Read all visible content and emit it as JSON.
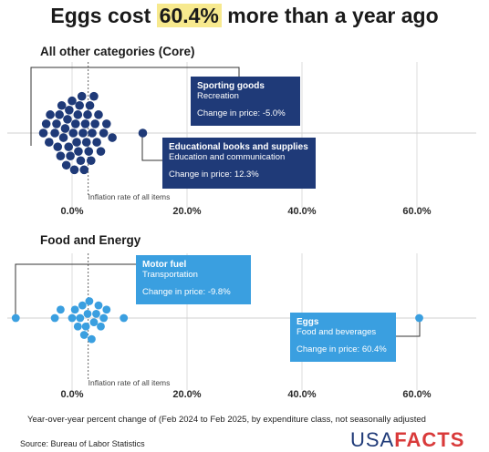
{
  "title": {
    "prefix": "Eggs cost ",
    "highlight": "60.4%",
    "suffix": " more than a year ago"
  },
  "chart_data": [
    {
      "type": "scatter",
      "title": "All other categories (Core)",
      "x_ticks": [
        "0.0%",
        "20.0%",
        "40.0%",
        "60.0%"
      ],
      "xlim": [
        -10,
        70
      ],
      "reference_line": {
        "value": 2.8,
        "label": "Inflation rate of all items"
      },
      "points": [
        -5,
        -4.5,
        -4,
        -3.8,
        -3,
        -2.7,
        -2.5,
        -2.2,
        -2,
        -1.8,
        -1.5,
        -1.2,
        -1,
        -0.8,
        -0.6,
        -0.5,
        -0.3,
        0,
        0.2,
        0.4,
        0.6,
        0.8,
        1,
        1.1,
        1.3,
        1.5,
        1.7,
        1.9,
        2.1,
        2.3,
        2.5,
        2.7,
        2.9,
        3.1,
        3.3,
        3.5,
        3.8,
        4,
        4.3,
        4.6,
        5,
        5.5,
        6,
        7,
        12.3
      ],
      "callouts": [
        {
          "name": "Sporting goods",
          "category": "Recreation",
          "change": "Change in price: -5.0%",
          "value": -5.0
        },
        {
          "name": "Educational books and supplies",
          "category": "Education and communication",
          "change": "Change in price: 12.3%",
          "value": 12.3
        }
      ]
    },
    {
      "type": "scatter",
      "title": "Food and Energy",
      "x_ticks": [
        "0.0%",
        "20.0%",
        "40.0%",
        "60.0%"
      ],
      "xlim": [
        -10,
        70
      ],
      "reference_line": {
        "value": 2.8,
        "label": "Inflation rate of all items"
      },
      "points": [
        -9.8,
        -3,
        -2,
        0,
        0.5,
        1,
        1.4,
        1.8,
        2.1,
        2.4,
        2.7,
        3,
        3.4,
        3.8,
        4.2,
        4.6,
        5,
        5.5,
        6,
        9,
        60.4
      ],
      "callouts": [
        {
          "name": "Motor fuel",
          "category": "Transportation",
          "change": "Change in price: -9.8%",
          "value": -9.8
        },
        {
          "name": "Eggs",
          "category": "Food and beverages",
          "change": "Change in price: 60.4%",
          "value": 60.4
        }
      ]
    }
  ],
  "footnote": "Year-over-year percent change of (Feb 2024 to Feb 2025, by expenditure class, not seasonally adjusted",
  "source": "Source: Bureau of Labor Statistics",
  "brand": {
    "prefix": "USA",
    "suffix": "FACTS"
  },
  "colors": {
    "core": "#1f3a78",
    "food": "#3a9fe0",
    "highlight": "#f7e98e"
  }
}
